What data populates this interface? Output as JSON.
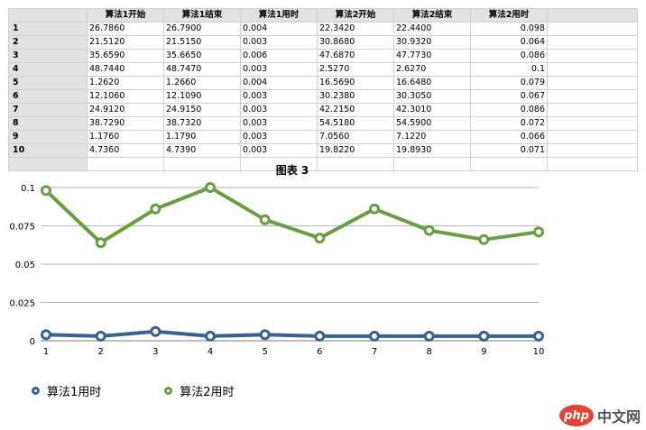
{
  "sheet": {
    "headers": [
      "",
      "算法1开始",
      "算法1结束",
      "算法1用时",
      "算法2开始",
      "算法2结束",
      "算法2用时",
      ""
    ],
    "rows": [
      [
        "1",
        "26.7860",
        "26.7900",
        "0.004",
        "22.3420",
        "22.4400",
        "0.098"
      ],
      [
        "2",
        "21.5120",
        "21.5150",
        "0.003",
        "30.8680",
        "30.9320",
        "0.064"
      ],
      [
        "3",
        "35.6590",
        "35.6650",
        "0.006",
        "47.6870",
        "47.7730",
        "0.086"
      ],
      [
        "4",
        "48.7440",
        "48.7470",
        "0.003",
        "2.5270",
        "2.6270",
        "0.1"
      ],
      [
        "5",
        "1.2620",
        "1.2660",
        "0.004",
        "16.5690",
        "16.6480",
        "0.079"
      ],
      [
        "6",
        "12.1060",
        "12.1090",
        "0.003",
        "30.2380",
        "30.3050",
        "0.067"
      ],
      [
        "7",
        "24.9120",
        "24.9150",
        "0.003",
        "42.2150",
        "42.3010",
        "0.086"
      ],
      [
        "8",
        "38.7290",
        "38.7320",
        "0.003",
        "54.5180",
        "54.5900",
        "0.072"
      ],
      [
        "9",
        "1.1760",
        "1.1790",
        "0.003",
        "7.0560",
        "7.1220",
        "0.066"
      ],
      [
        "10",
        "4.7360",
        "4.7390",
        "0.003",
        "19.8220",
        "19.8930",
        "0.071"
      ]
    ]
  },
  "chart_data": {
    "type": "line",
    "title": "图表 3",
    "x": [
      1,
      2,
      3,
      4,
      5,
      6,
      7,
      8,
      9,
      10
    ],
    "ylim": [
      0,
      0.1
    ],
    "yticks": [
      "0",
      "0.025",
      "0.05",
      "0.075",
      "0.1"
    ],
    "grid": true,
    "legend_position": "bottom-left",
    "series": [
      {
        "name": "算法1用时",
        "color": "#3a5f94",
        "values": [
          0.004,
          0.003,
          0.006,
          0.003,
          0.004,
          0.003,
          0.003,
          0.003,
          0.003,
          0.003
        ]
      },
      {
        "name": "算法2用时",
        "color": "#6a9c43",
        "values": [
          0.098,
          0.064,
          0.086,
          0.1,
          0.079,
          0.067,
          0.086,
          0.072,
          0.066,
          0.071
        ]
      }
    ]
  },
  "watermark": {
    "badge": "php",
    "text": "中文网"
  }
}
